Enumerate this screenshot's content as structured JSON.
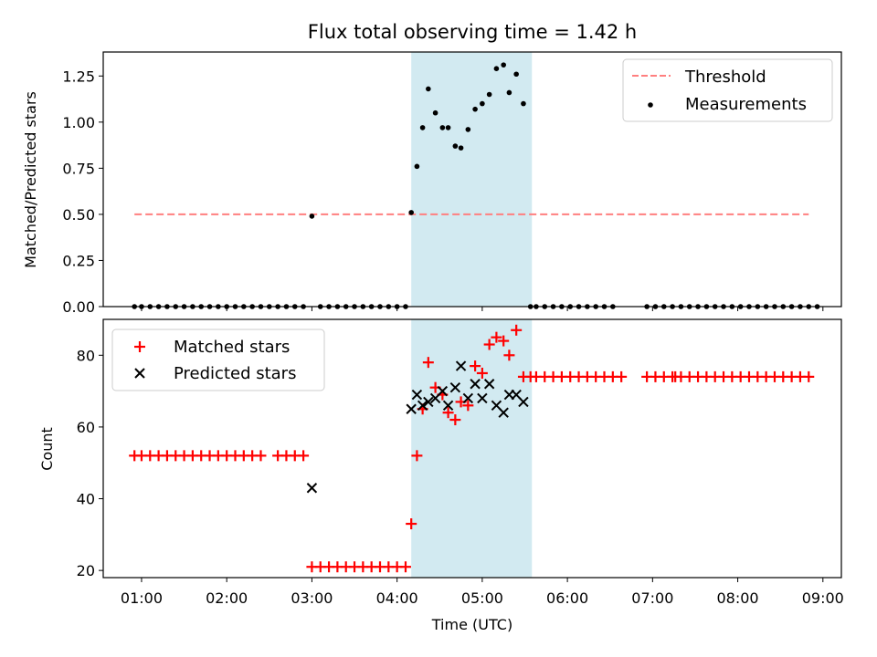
{
  "chart_data": [
    {
      "type": "scatter",
      "title": "Flux total observing time = 1.42 h",
      "ylabel": "Matched/Predicted stars",
      "xlabel": "",
      "xlim": [
        "00:33",
        "09:13"
      ],
      "ylim": [
        0,
        1.38
      ],
      "yticks": [
        0.0,
        0.25,
        0.5,
        0.75,
        1.0,
        1.25
      ],
      "ytick_labels": [
        "0.00",
        "0.25",
        "0.50",
        "0.75",
        "1.00",
        "1.25"
      ],
      "legend_position": "top-right",
      "shaded_span": {
        "start": "04:10",
        "end": "05:35",
        "color": "#add8e6"
      },
      "series": [
        {
          "name": "Threshold",
          "kind": "dashed-line",
          "color": "#ff7f7f",
          "x": [
            "00:55",
            "08:50"
          ],
          "y": [
            0.5,
            0.5
          ]
        },
        {
          "name": "Measurements",
          "kind": "points",
          "color": "#000000",
          "x": [
            "00:55",
            "01:00",
            "01:06",
            "01:12",
            "01:18",
            "01:24",
            "01:30",
            "01:36",
            "01:42",
            "01:48",
            "01:54",
            "02:00",
            "02:06",
            "02:12",
            "02:18",
            "02:24",
            "02:30",
            "02:42",
            "02:48",
            "02:54",
            "03:00",
            "03:06",
            "03:12",
            "03:18",
            "03:24",
            "03:30",
            "03:36",
            "03:42",
            "03:48",
            "03:54",
            "04:00",
            "04:06",
            "04:10",
            "04:14",
            "04:18",
            "04:22",
            "04:27",
            "04:32",
            "04:36",
            "04:41",
            "04:45",
            "04:50",
            "04:55",
            "05:00",
            "05:05",
            "05:10",
            "05:15",
            "05:19",
            "05:24",
            "05:29",
            "05:34",
            "05:38",
            "05:44",
            "05:50",
            "05:56",
            "06:02",
            "06:08",
            "06:14",
            "06:20",
            "06:26",
            "06:32",
            "06:56",
            "07:02",
            "07:08",
            "07:14",
            "07:20",
            "07:26",
            "07:32",
            "07:38",
            "07:44",
            "07:50",
            "07:56",
            "08:02",
            "08:08",
            "08:14",
            "08:20",
            "08:26",
            "08:32",
            "08:38",
            "08:44",
            "08:50",
            "02:36",
            "08:56"
          ],
          "y": [
            0,
            0,
            0,
            0,
            0,
            0,
            0,
            0,
            0,
            0,
            0,
            0,
            0,
            0,
            0,
            0,
            0,
            0,
            0,
            0,
            0.49,
            0,
            0,
            0,
            0,
            0,
            0,
            0,
            0,
            0,
            0,
            0,
            0.51,
            0.76,
            0.97,
            1.18,
            1.05,
            0.97,
            0.97,
            0.87,
            0.86,
            0.96,
            1.07,
            1.1,
            1.15,
            1.29,
            1.31,
            1.16,
            1.26,
            1.1,
            0,
            0,
            0,
            0,
            0,
            0,
            0,
            0,
            0,
            0,
            0,
            0,
            0,
            0,
            0,
            0,
            0,
            0,
            0,
            0,
            0,
            0,
            0,
            0,
            0,
            0,
            0,
            0,
            0,
            0,
            0,
            0,
            0
          ]
        }
      ]
    },
    {
      "type": "scatter",
      "title": "",
      "xlabel": "Time (UTC)",
      "ylabel": "Count",
      "xlim": [
        "00:33",
        "09:13"
      ],
      "ylim": [
        18,
        90
      ],
      "yticks": [
        20,
        40,
        60,
        80
      ],
      "ytick_labels": [
        "20",
        "40",
        "60",
        "80"
      ],
      "xticks": [
        "01:00",
        "02:00",
        "03:00",
        "04:00",
        "05:00",
        "06:00",
        "07:00",
        "08:00",
        "09:00"
      ],
      "legend_position": "top-left",
      "shaded_span": {
        "start": "04:10",
        "end": "05:35",
        "color": "#add8e6"
      },
      "series": [
        {
          "name": "Matched stars",
          "kind": "plus",
          "color": "#ff0000",
          "x": [
            "00:55",
            "01:00",
            "01:06",
            "01:12",
            "01:18",
            "01:24",
            "01:30",
            "01:36",
            "01:42",
            "01:48",
            "01:54",
            "02:00",
            "02:06",
            "02:12",
            "02:18",
            "02:24",
            "02:36",
            "02:42",
            "02:48",
            "02:54",
            "03:00",
            "03:06",
            "03:12",
            "03:18",
            "03:24",
            "03:30",
            "03:36",
            "03:42",
            "03:48",
            "03:54",
            "04:00",
            "04:06",
            "04:10",
            "04:14",
            "04:18",
            "04:22",
            "04:27",
            "04:32",
            "04:36",
            "04:41",
            "04:45",
            "04:50",
            "04:55",
            "05:00",
            "05:05",
            "05:10",
            "05:15",
            "05:19",
            "05:24",
            "05:29",
            "05:34",
            "05:38",
            "05:44",
            "05:50",
            "05:56",
            "06:02",
            "06:08",
            "06:14",
            "06:20",
            "06:26",
            "06:32",
            "06:56",
            "07:02",
            "07:08",
            "07:14",
            "07:20",
            "07:26",
            "07:32",
            "07:38",
            "07:44",
            "07:50",
            "07:56",
            "08:02",
            "08:08",
            "08:14",
            "08:20",
            "08:26",
            "08:32",
            "08:38",
            "08:44",
            "08:50",
            "06:38",
            "07:16"
          ],
          "y": [
            52,
            52,
            52,
            52,
            52,
            52,
            52,
            52,
            52,
            52,
            52,
            52,
            52,
            52,
            52,
            52,
            52,
            52,
            52,
            52,
            21,
            21,
            21,
            21,
            21,
            21,
            21,
            21,
            21,
            21,
            21,
            21,
            33,
            52,
            65,
            78,
            71,
            69,
            64,
            62,
            67,
            66,
            77,
            75,
            83,
            85,
            84,
            80,
            87,
            74,
            74,
            74,
            74,
            74,
            74,
            74,
            74,
            74,
            74,
            74,
            74,
            74,
            74,
            74,
            74,
            74,
            74,
            74,
            74,
            74,
            74,
            74,
            74,
            74,
            74,
            74,
            74,
            74,
            74,
            74,
            74,
            74,
            74
          ]
        },
        {
          "name": "Predicted stars",
          "kind": "x",
          "color": "#000000",
          "x": [
            "03:00",
            "04:10",
            "04:14",
            "04:18",
            "04:22",
            "04:27",
            "04:32",
            "04:36",
            "04:41",
            "04:45",
            "04:50",
            "04:55",
            "05:00",
            "05:05",
            "05:10",
            "05:15",
            "05:19",
            "05:24",
            "05:29"
          ],
          "y": [
            43,
            65,
            69,
            66,
            67,
            68,
            70,
            66,
            71,
            77,
            68,
            72,
            68,
            72,
            66,
            64,
            69,
            69,
            67
          ]
        }
      ]
    }
  ]
}
